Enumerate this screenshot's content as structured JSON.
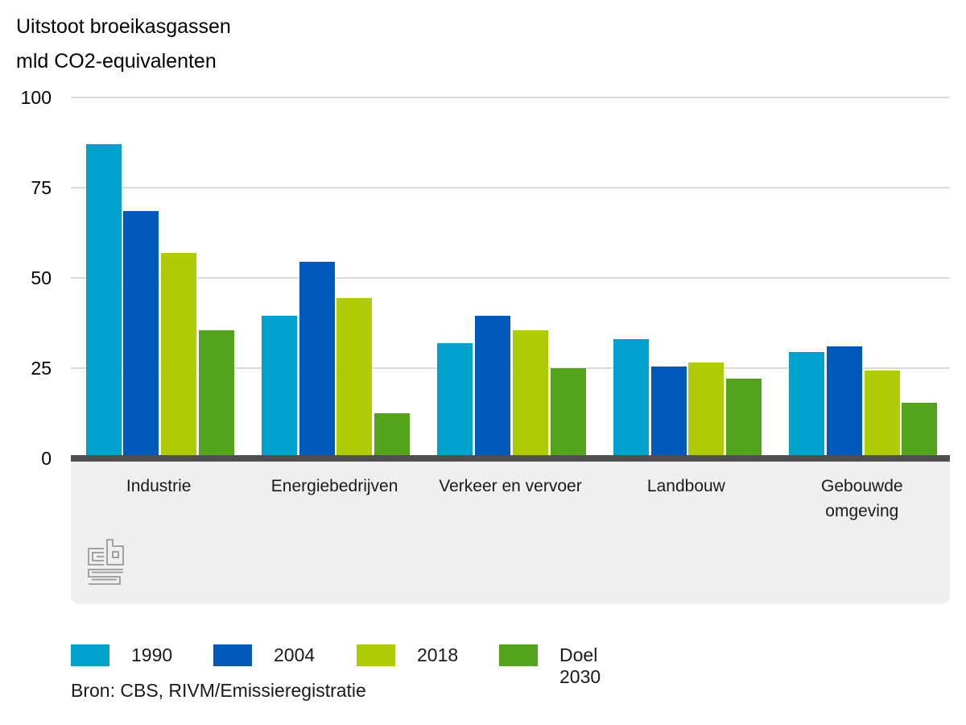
{
  "title": "Uitstoot broeikasgassen",
  "subtitle": "mld CO2-equivalenten",
  "source": "Bron: CBS, RIVM/Emissieregistratie",
  "logo": {
    "name": "cbs-logo",
    "alt": "CBS"
  },
  "colors": {
    "axis": "#4f4f4f",
    "gridline": "#d9d9d9",
    "panel_background": "#efefef",
    "logo_grey": "#9a9a9a"
  },
  "chart_data": {
    "type": "bar",
    "title": "Uitstoot broeikasgassen",
    "ylabel": "mld CO2-equivalenten",
    "xlabel": "",
    "ylim": [
      0,
      100
    ],
    "yticks": [
      0,
      25,
      50,
      75,
      100
    ],
    "grid": true,
    "legend_position": "bottom",
    "categories": [
      "Industrie",
      "Energiebedrijven",
      "Verkeer en vervoer",
      "Landbouw",
      "Gebouwde\nomgeving"
    ],
    "series": [
      {
        "name": "1990",
        "color": "#00a1cd",
        "values": [
          87,
          39.5,
          32,
          33,
          29.5
        ]
      },
      {
        "name": "2004",
        "color": "#0058b8",
        "values": [
          68.5,
          54.5,
          39.5,
          25.5,
          31
        ]
      },
      {
        "name": "2018",
        "color": "#afcb05",
        "values": [
          57,
          44.5,
          35.5,
          26.5,
          24.4
        ]
      },
      {
        "name": "Doel 2030",
        "color": "#53a31d",
        "values": [
          35.5,
          12.4,
          25,
          22,
          15.3
        ]
      }
    ]
  }
}
